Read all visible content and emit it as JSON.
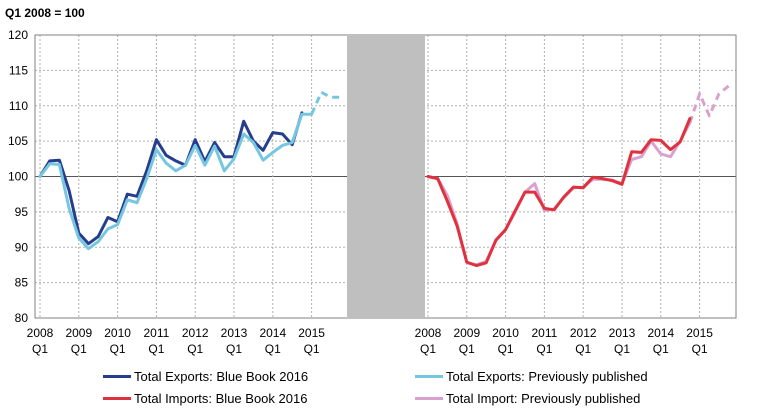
{
  "chart_data": {
    "type": "line",
    "title": "Q1 2008  = 100",
    "ylim": [
      80,
      120
    ],
    "yticks": [
      "120",
      "115",
      "110",
      "105",
      "100",
      "95",
      "90",
      "85",
      "80"
    ],
    "year_labels": [
      "2008",
      "2009",
      "2010",
      "2011",
      "2012",
      "2013",
      "2014",
      "2015"
    ],
    "quarter_label": "Q1",
    "x_quarters": 31,
    "panels": [
      {
        "name": "Exports",
        "series": [
          {
            "name": "Total Exports: Blue Book 2016",
            "color": "#253d8c",
            "values": [
              100.0,
              102.2,
              102.3,
              98.0,
              92.0,
              90.5,
              91.5,
              94.2,
              93.6,
              97.5,
              97.2,
              100.8,
              105.2,
              103.0,
              102.2,
              101.6,
              105.2,
              102.1,
              104.8,
              102.8,
              102.8,
              107.8,
              105.0,
              103.7,
              106.2,
              106.0,
              104.5,
              109.0
            ]
          },
          {
            "name": "Total Exports: Previously published",
            "color": "#76c6e1",
            "values": [
              100.0,
              101.8,
              101.7,
              95.5,
              91.3,
              89.8,
              90.8,
              92.6,
              93.2,
              96.7,
              96.3,
              99.7,
              103.8,
              101.9,
              100.8,
              101.6,
              104.4,
              101.6,
              104.3,
              100.8,
              102.5,
              106.0,
              104.8,
              102.3,
              103.4,
              104.4,
              104.8,
              108.8,
              108.8,
              111.9,
              111.2,
              111.2
            ],
            "dashed_from_index": 28
          }
        ]
      },
      {
        "name": "Imports",
        "series": [
          {
            "name": "Total Import: Previously published",
            "color": "#d9a1cf",
            "values": [
              100.0,
              99.7,
              97.3,
              93.3,
              87.8,
              87.5,
              88.0,
              91.0,
              92.5,
              95.0,
              97.8,
              99.0,
              95.2,
              95.4,
              97.0,
              98.4,
              98.5,
              99.6,
              99.6,
              99.5,
              99.0,
              102.4,
              102.8,
              105.0,
              103.2,
              102.8,
              105.0,
              107.6,
              111.7,
              108.6,
              111.7,
              112.8
            ],
            "dashed_from_index": 27
          },
          {
            "name": "Total Imports: Blue Book 2016",
            "color": "#e0323e",
            "values": [
              100.0,
              99.7,
              96.5,
              93.0,
              87.9,
              87.4,
              87.8,
              91.0,
              92.5,
              95.2,
              97.8,
              97.8,
              95.5,
              95.3,
              97.1,
              98.5,
              98.4,
              99.9,
              99.7,
              99.4,
              98.9,
              103.5,
              103.4,
              105.2,
              105.1,
              103.8,
              104.9,
              108.2
            ]
          }
        ]
      }
    ],
    "legend": [
      {
        "label": "Total Exports: Blue Book 2016",
        "color": "#253d8c",
        "style": "solid"
      },
      {
        "label": "Total Exports: Previously published",
        "color": "#76c6e1",
        "style": "solid"
      },
      {
        "label": "Total Imports: Blue Book 2016",
        "color": "#e0323e",
        "style": "solid"
      },
      {
        "label": "Total Import: Previously published",
        "color": "#d9a1cf",
        "style": "solid"
      }
    ],
    "grid": true,
    "separator_color": "#bfbfbf"
  }
}
